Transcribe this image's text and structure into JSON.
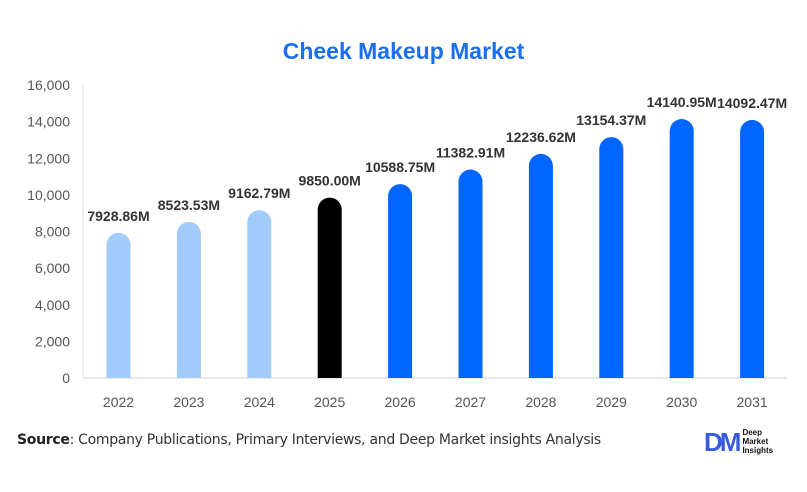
{
  "title": "Cheek Makeup Market",
  "source": {
    "label": "Source",
    "text": ": Company Publications, Primary Interviews, and Deep Market insights Analysis"
  },
  "logo": {
    "mark": "DM",
    "lines": [
      "Deep",
      "Market",
      "Insights"
    ]
  },
  "colors": {
    "title": "#1a6ff0",
    "historical": "#a0cbfa",
    "base_year": "#000000",
    "forecast": "#0066ff",
    "axis_text": "#555555",
    "label_text": "#333333"
  },
  "chart_data": {
    "type": "bar",
    "title": "Cheek Makeup Market",
    "xlabel": "",
    "ylabel": "",
    "categories": [
      "2022",
      "2023",
      "2024",
      "2025",
      "2026",
      "2027",
      "2028",
      "2029",
      "2030",
      "2031"
    ],
    "values": [
      7928.86,
      8523.53,
      9162.79,
      9850.0,
      10588.75,
      11382.91,
      12236.62,
      13154.37,
      14140.95,
      14092.47
    ],
    "data_labels": [
      "7928.86M",
      "8523.53M",
      "9162.79M",
      "9850.00M",
      "10588.75M",
      "11382.91M",
      "12236.62M",
      "13154.37M",
      "14140.95M",
      "14092.47M"
    ],
    "bar_kind": [
      "historical",
      "historical",
      "historical",
      "base_year",
      "forecast",
      "forecast",
      "forecast",
      "forecast",
      "forecast",
      "forecast"
    ],
    "ylim": [
      0,
      16000
    ],
    "yticks": [
      0,
      2000,
      4000,
      6000,
      8000,
      10000,
      12000,
      14000,
      16000
    ],
    "ytick_labels": [
      "0",
      "2,000",
      "4,000",
      "6,000",
      "8,000",
      "10,000",
      "12,000",
      "14,000",
      "16,000"
    ],
    "grid": false,
    "legend": null,
    "unit": "M"
  }
}
